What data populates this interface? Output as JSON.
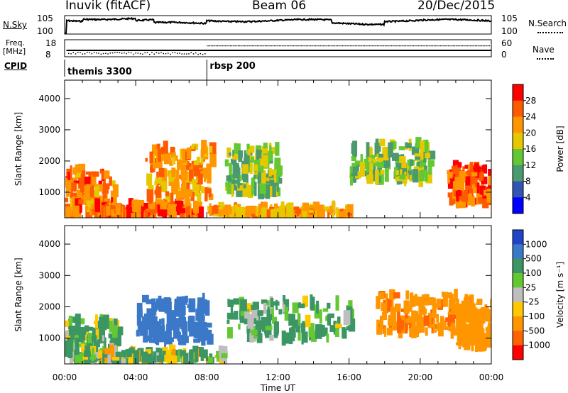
{
  "header": {
    "station": "Inuvik (fitACF)",
    "beam": "Beam 06",
    "date": "20/Dec/2015"
  },
  "noise_panel": {
    "left_label": "N.Sky",
    "right_label": "N.Search",
    "left_ticks": [
      "10^5",
      "10^0"
    ],
    "right_ticks": [
      "10^5",
      "10^0"
    ]
  },
  "freq_panel": {
    "left_label_line1": "Freq.",
    "left_label_line2": "[MHz]",
    "left_ticks": [
      "18",
      "8"
    ],
    "right_label": "Nave",
    "right_ticks": [
      "60",
      "0"
    ]
  },
  "cpid_panel": {
    "label": "CPID",
    "modes": [
      {
        "name": "themis 3300",
        "start_hour": 0
      },
      {
        "name": "rbsp 200",
        "start_hour": 8
      }
    ]
  },
  "chart_data": [
    {
      "type": "heatmap",
      "panel": "power",
      "ylabel": "Slant Range [km]",
      "xlabel": "",
      "ylim": [
        180,
        4590
      ],
      "y_ticks": [
        1000,
        2000,
        3000,
        4000
      ],
      "xlim": [
        0,
        24
      ],
      "colorbar_label": "Power [dB]",
      "colorbar_ticks": [
        "28",
        "24",
        "20",
        "16",
        "12",
        "8",
        "4"
      ],
      "colorbar_colors": [
        "#ff0000",
        "#ff5a00",
        "#ff9600",
        "#e6c800",
        "#64c832",
        "#4a9a6e",
        "#3255b4",
        "#0000ff"
      ],
      "approx_echo_regions": [
        {
          "t0": 0.0,
          "t1": 2.8,
          "r0": 300,
          "r1": 1700,
          "value": 24
        },
        {
          "t0": 1.5,
          "t1": 7.5,
          "r0": 280,
          "r1": 600,
          "value": 26
        },
        {
          "t0": 4.5,
          "t1": 8.2,
          "r0": 800,
          "r1": 2500,
          "value": 22
        },
        {
          "t0": 9.0,
          "t1": 12.0,
          "r0": 1000,
          "r1": 2400,
          "value": 14
        },
        {
          "t0": 8.0,
          "t1": 16.0,
          "r0": 280,
          "r1": 500,
          "value": 22
        },
        {
          "t0": 16.0,
          "t1": 20.5,
          "r0": 1400,
          "r1": 2600,
          "value": 14
        },
        {
          "t0": 21.5,
          "t1": 24.0,
          "r0": 700,
          "r1": 1900,
          "value": 26
        }
      ]
    },
    {
      "type": "heatmap",
      "panel": "velocity",
      "ylabel": "Slant Range [km]",
      "xlabel": "Time UT",
      "ylim": [
        180,
        4590
      ],
      "y_ticks": [
        1000,
        2000,
        3000,
        4000
      ],
      "xlim": [
        0,
        24
      ],
      "x_ticks": [
        "00:00",
        "04:00",
        "08:00",
        "12:00",
        "16:00",
        "20:00",
        "00:00"
      ],
      "colorbar_label": "Velocity [m s^-1]",
      "colorbar_ticks": [
        "1000",
        "500",
        "100",
        "25",
        "-25",
        "-100",
        "-500",
        "-1000"
      ],
      "colorbar_colors": [
        "#2044c8",
        "#3c78c8",
        "#3c9664",
        "#64c832",
        "#bebebe",
        "#ffc800",
        "#ff9600",
        "#ff6400",
        "#ff0000"
      ],
      "approx_echo_regions": [
        {
          "t0": 0.0,
          "t1": 3.0,
          "r0": 300,
          "r1": 1600,
          "value": 100
        },
        {
          "t0": 4.0,
          "t1": 8.0,
          "r0": 900,
          "r1": 2300,
          "value": 700
        },
        {
          "t0": 1.0,
          "t1": 9.0,
          "r0": 280,
          "r1": 600,
          "value": 60
        },
        {
          "t0": 9.0,
          "t1": 16.0,
          "r0": 1000,
          "r1": 2200,
          "value": 150
        },
        {
          "t0": 17.5,
          "t1": 22.0,
          "r0": 1200,
          "r1": 2400,
          "value": -400
        },
        {
          "t0": 22.0,
          "t1": 24.0,
          "r0": 800,
          "r1": 2200,
          "value": -300
        }
      ]
    }
  ],
  "colors": {
    "background": "#ffffff",
    "axis": "#000000"
  }
}
